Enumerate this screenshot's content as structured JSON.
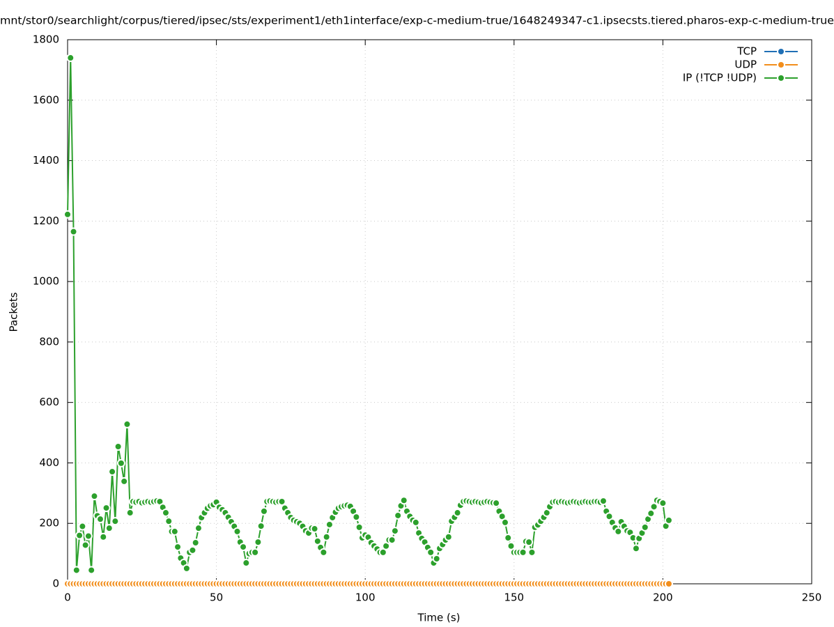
{
  "chart_data": {
    "type": "line",
    "title": "mnt/stor0/searchlight/corpus/tiered/ipsec/sts/experiment1/eth1interface/exp-c-medium-true/1648249347-c1.ipsecsts.tiered.pharos-exp-c-medium-true",
    "xlabel": "Time (s)",
    "ylabel": "Packets",
    "xlim": [
      0,
      250
    ],
    "xticks": [
      0,
      50,
      100,
      150,
      200,
      250
    ],
    "ylim": [
      0,
      1800
    ],
    "yticks": [
      0,
      200,
      400,
      600,
      800,
      1000,
      1200,
      1400,
      1600,
      1800
    ],
    "grid": true,
    "legend": "top-right",
    "x": [
      0,
      1,
      2,
      3,
      4,
      5,
      6,
      7,
      8,
      9,
      10,
      11,
      12,
      13,
      14,
      15,
      16,
      17,
      18,
      19,
      20,
      21,
      22,
      23,
      24,
      25,
      26,
      27,
      28,
      29,
      30,
      31,
      32,
      33,
      34,
      35,
      36,
      37,
      38,
      39,
      40,
      41,
      42,
      43,
      44,
      45,
      46,
      47,
      48,
      49,
      50,
      51,
      52,
      53,
      54,
      55,
      56,
      57,
      58,
      59,
      60,
      61,
      62,
      63,
      64,
      65,
      66,
      67,
      68,
      69,
      70,
      71,
      72,
      73,
      74,
      75,
      76,
      77,
      78,
      79,
      80,
      81,
      82,
      83,
      84,
      85,
      86,
      87,
      88,
      89,
      90,
      91,
      92,
      93,
      94,
      95,
      96,
      97,
      98,
      99,
      100,
      101,
      102,
      103,
      104,
      105,
      106,
      107,
      108,
      109,
      110,
      111,
      112,
      113,
      114,
      115,
      116,
      117,
      118,
      119,
      120,
      121,
      122,
      123,
      124,
      125,
      126,
      127,
      128,
      129,
      130,
      131,
      132,
      133,
      134,
      135,
      136,
      137,
      138,
      139,
      140,
      141,
      142,
      143,
      144,
      145,
      146,
      147,
      148,
      149,
      150,
      151,
      152,
      153,
      154,
      155,
      156,
      157,
      158,
      159,
      160,
      161,
      162,
      163,
      164,
      165,
      166,
      167,
      168,
      169,
      170,
      171,
      172,
      173,
      174,
      175,
      176,
      177,
      178,
      179,
      180,
      181,
      182,
      183,
      184,
      185,
      186,
      187,
      188,
      189,
      190,
      191,
      192,
      193,
      194,
      195,
      196,
      197,
      198,
      199,
      200,
      201,
      202
    ],
    "series": [
      {
        "name": "TCP",
        "color": "#1f6fb5",
        "values": [
          0,
          0,
          0,
          0,
          0,
          0,
          0,
          0,
          0,
          0,
          0,
          0,
          0,
          0,
          0,
          0,
          0,
          0,
          0,
          0,
          0,
          0,
          0,
          0,
          0,
          0,
          0,
          0,
          0,
          0,
          0,
          0,
          0,
          0,
          0,
          0,
          0,
          0,
          0,
          0,
          0,
          0,
          0,
          0,
          0,
          0,
          0,
          0,
          0,
          0,
          0,
          0,
          0,
          0,
          0,
          0,
          0,
          0,
          0,
          0,
          0,
          0,
          0,
          0,
          0,
          0,
          0,
          0,
          0,
          0,
          0,
          0,
          0,
          0,
          0,
          0,
          0,
          0,
          0,
          0,
          0,
          0,
          0,
          0,
          0,
          0,
          0,
          0,
          0,
          0,
          0,
          0,
          0,
          0,
          0,
          0,
          0,
          0,
          0,
          0,
          0,
          0,
          0,
          0,
          0,
          0,
          0,
          0,
          0,
          0,
          0,
          0,
          0,
          0,
          0,
          0,
          0,
          0,
          0,
          0,
          0,
          0,
          0,
          0,
          0,
          0,
          0,
          0,
          0,
          0,
          0,
          0,
          0,
          0,
          0,
          0,
          0,
          0,
          0,
          0,
          0,
          0,
          0,
          0,
          0,
          0,
          0,
          0,
          0,
          0,
          0,
          0,
          0,
          0,
          0,
          0,
          0,
          0,
          0,
          0,
          0,
          0,
          0,
          0,
          0,
          0,
          0,
          0,
          0,
          0,
          0,
          0,
          0,
          0,
          0,
          0,
          0,
          0,
          0,
          0,
          0,
          0,
          0,
          0,
          0,
          0,
          0,
          0,
          0,
          0,
          0,
          0,
          0,
          0,
          0,
          0,
          0,
          0,
          0,
          0,
          0,
          0,
          0
        ]
      },
      {
        "name": "UDP",
        "color": "#f28e1c",
        "values": [
          0,
          0,
          0,
          0,
          0,
          0,
          0,
          0,
          0,
          0,
          0,
          0,
          0,
          0,
          0,
          0,
          0,
          0,
          0,
          0,
          0,
          0,
          0,
          0,
          0,
          0,
          0,
          0,
          0,
          0,
          0,
          0,
          0,
          0,
          0,
          0,
          0,
          0,
          0,
          0,
          0,
          0,
          0,
          0,
          0,
          0,
          0,
          0,
          0,
          0,
          0,
          0,
          0,
          0,
          0,
          0,
          0,
          0,
          0,
          0,
          0,
          0,
          0,
          0,
          0,
          0,
          0,
          0,
          0,
          0,
          0,
          0,
          0,
          0,
          0,
          0,
          0,
          0,
          0,
          0,
          0,
          0,
          0,
          0,
          0,
          0,
          0,
          0,
          0,
          0,
          0,
          0,
          0,
          0,
          0,
          0,
          0,
          0,
          0,
          0,
          0,
          0,
          0,
          0,
          0,
          0,
          0,
          0,
          0,
          0,
          0,
          0,
          0,
          0,
          0,
          0,
          0,
          0,
          0,
          0,
          0,
          0,
          0,
          0,
          0,
          0,
          0,
          0,
          0,
          0,
          0,
          0,
          0,
          0,
          0,
          0,
          0,
          0,
          0,
          0,
          0,
          0,
          0,
          0,
          0,
          0,
          0,
          0,
          0,
          0,
          0,
          0,
          0,
          0,
          0,
          0,
          0,
          0,
          0,
          0,
          0,
          0,
          0,
          0,
          0,
          0,
          0,
          0,
          0,
          0,
          0,
          0,
          0,
          0,
          0,
          0,
          0,
          0,
          0,
          0,
          0,
          0,
          0,
          0,
          0,
          0,
          0,
          0,
          0,
          0,
          0,
          0,
          0,
          0,
          0,
          0,
          0,
          0,
          0,
          0,
          0,
          0,
          0
        ]
      },
      {
        "name": "IP (!TCP  !UDP)",
        "color": "#2ca02c",
        "values": [
          1222,
          1740,
          1165,
          45,
          160,
          190,
          128,
          158,
          45,
          290,
          225,
          214,
          155,
          251,
          184,
          371,
          207,
          454,
          399,
          339,
          528,
          235,
          272,
          270,
          272,
          268,
          270,
          272,
          270,
          272,
          274,
          272,
          253,
          235,
          207,
          173,
          173,
          122,
          85,
          69,
          51,
          104,
          111,
          136,
          184,
          219,
          235,
          250,
          258,
          262,
          270,
          253,
          245,
          235,
          220,
          205,
          190,
          173,
          138,
          122,
          69,
          100,
          104,
          104,
          138,
          191,
          240,
          272,
          274,
          272,
          270,
          272,
          272,
          250,
          235,
          219,
          210,
          205,
          200,
          190,
          175,
          168,
          184,
          182,
          141,
          120,
          104,
          155,
          196,
          219,
          237,
          250,
          255,
          258,
          260,
          256,
          240,
          221,
          187,
          152,
          161,
          154,
          136,
          125,
          115,
          104,
          104,
          125,
          145,
          145,
          175,
          226,
          258,
          276,
          240,
          223,
          210,
          203,
          168,
          150,
          138,
          120,
          104,
          69,
          83,
          117,
          130,
          145,
          155,
          207,
          220,
          235,
          260,
          272,
          274,
          272,
          270,
          272,
          270,
          268,
          270,
          272,
          270,
          268,
          267,
          240,
          223,
          203,
          152,
          125,
          104,
          104,
          104,
          104,
          140,
          138,
          104,
          187,
          195,
          207,
          220,
          235,
          255,
          270,
          272,
          270,
          272,
          270,
          268,
          270,
          272,
          270,
          268,
          270,
          272,
          270,
          270,
          272,
          272,
          270,
          274,
          240,
          223,
          203,
          185,
          173,
          205,
          190,
          175,
          170,
          152,
          117,
          150,
          168,
          187,
          214,
          233,
          255,
          276,
          272,
          267,
          191,
          210
        ]
      }
    ]
  }
}
